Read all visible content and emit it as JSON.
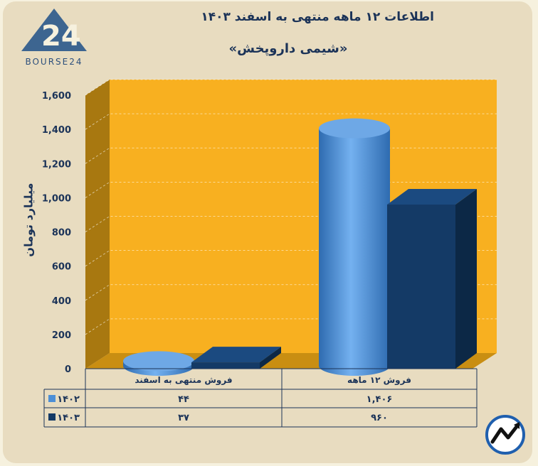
{
  "header": {
    "title": "اطلاعات ۱۲ ماهه منتهی به اسفند ۱۴۰۳",
    "subtitle": "«شیمی داروپخش»"
  },
  "brand": {
    "logo_text": "BOURSE24"
  },
  "colors": {
    "plot_bg": "#f8b020",
    "plot_wall": "#a87810",
    "series_1402": "#4d8fd6",
    "series_1403": "#143a66",
    "text": "#1b3358"
  },
  "chart_data": {
    "type": "bar",
    "title": "اطلاعات ۱۲ ماهه منتهی به اسفند ۱۴۰۳",
    "subtitle": "«شیمی داروپخش»",
    "ylabel": "میلیارد تومان",
    "ylim": [
      0,
      1600
    ],
    "yticks": [
      0,
      200,
      400,
      600,
      800,
      1000,
      1200,
      1400,
      1600
    ],
    "ytick_labels": [
      "0",
      "200",
      "400",
      "600",
      "800",
      "1,000",
      "1,200",
      "1,400",
      "1,600"
    ],
    "categories": [
      "فروش منتهی به  اسفند",
      "فروش ۱۲  ماهه"
    ],
    "series": [
      {
        "name": "۱۴۰۲",
        "values": [
          44,
          1406
        ],
        "value_labels": [
          "۴۴",
          "۱,۴۰۶"
        ]
      },
      {
        "name": "۱۴۰۳",
        "values": [
          37,
          960
        ],
        "value_labels": [
          "۳۷",
          "۹۶۰"
        ]
      }
    ],
    "grid": true,
    "legend": "data-table"
  }
}
